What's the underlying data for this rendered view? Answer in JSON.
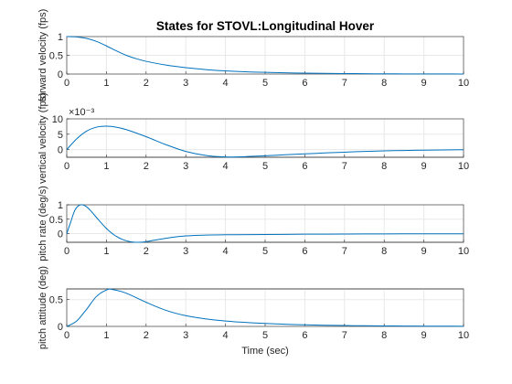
{
  "chart_data": {
    "type": "line",
    "title": "States for STOVL:Longitudinal Hover",
    "xlabel": "Time (sec)",
    "colors": {
      "line": "#0072BD",
      "axes": "#262626",
      "grid": "#e8e8e8"
    },
    "grid": true,
    "subplots": [
      {
        "ylabel": "forward velocity (fps)",
        "exponent_label": "",
        "xlim": [
          0,
          10
        ],
        "ylim": [
          0,
          1
        ],
        "xticks": [
          0,
          1,
          2,
          3,
          4,
          5,
          6,
          7,
          8,
          9,
          10
        ],
        "yticks": [
          0,
          0.5,
          1
        ],
        "ytick_labels": [
          "0",
          "0.5",
          "1"
        ],
        "x": [
          0,
          0.25,
          0.5,
          0.75,
          1,
          1.25,
          1.5,
          1.75,
          2,
          2.5,
          3,
          3.5,
          4,
          4.5,
          5,
          5.5,
          6,
          6.5,
          7,
          7.5,
          8,
          8.5,
          9,
          9.5,
          10
        ],
        "y": [
          1,
          0.99,
          0.95,
          0.87,
          0.75,
          0.62,
          0.5,
          0.41,
          0.34,
          0.24,
          0.17,
          0.12,
          0.085,
          0.06,
          0.045,
          0.033,
          0.025,
          0.018,
          0.013,
          0.009,
          0.006,
          0.004,
          0.003,
          0.002,
          0.001
        ]
      },
      {
        "ylabel": "vertical velocity (fps)",
        "exponent_label": "×10⁻³",
        "xlim": [
          0,
          10
        ],
        "ylim": [
          -2.5,
          10
        ],
        "xticks": [
          0,
          1,
          2,
          3,
          4,
          5,
          6,
          7,
          8,
          9,
          10
        ],
        "yticks": [
          0,
          5,
          10
        ],
        "ytick_labels": [
          "0",
          "5",
          "10"
        ],
        "x": [
          0,
          0.25,
          0.5,
          0.75,
          1,
          1.25,
          1.5,
          2,
          2.5,
          3,
          3.5,
          4,
          4.5,
          5,
          5.5,
          6,
          6.5,
          7,
          7.5,
          8,
          8.5,
          9,
          9.5,
          10
        ],
        "y": [
          0,
          3.5,
          6,
          7.3,
          7.6,
          7.3,
          6.5,
          4.2,
          1.6,
          -0.6,
          -1.9,
          -2.4,
          -2.3,
          -2,
          -1.7,
          -1.4,
          -1.1,
          -0.85,
          -0.6,
          -0.42,
          -0.3,
          -0.2,
          -0.12,
          -0.06
        ]
      },
      {
        "ylabel": "pitch rate (deg/s)",
        "exponent_label": "",
        "xlim": [
          0,
          10
        ],
        "ylim": [
          -0.3,
          1
        ],
        "xticks": [
          0,
          1,
          2,
          3,
          4,
          5,
          6,
          7,
          8,
          9,
          10
        ],
        "yticks": [
          0,
          0.5,
          1
        ],
        "ytick_labels": [
          "0",
          "0.5",
          "1"
        ],
        "x": [
          0,
          0.1,
          0.2,
          0.3,
          0.4,
          0.5,
          0.6,
          0.8,
          1,
          1.2,
          1.4,
          1.6,
          1.8,
          2,
          2.2,
          2.5,
          3,
          3.5,
          4,
          5,
          6,
          7,
          8,
          9,
          10
        ],
        "y": [
          0,
          0.4,
          0.8,
          0.97,
          1,
          0.93,
          0.8,
          0.48,
          0.18,
          -0.05,
          -0.2,
          -0.28,
          -0.3,
          -0.28,
          -0.23,
          -0.16,
          -0.08,
          -0.05,
          -0.04,
          -0.03,
          -0.02,
          -0.015,
          -0.01,
          -0.007,
          -0.005
        ]
      },
      {
        "ylabel": "pitch attitude (deg)",
        "exponent_label": "",
        "xlim": [
          0,
          10
        ],
        "ylim": [
          0,
          0.7
        ],
        "xticks": [
          0,
          1,
          2,
          3,
          4,
          5,
          6,
          7,
          8,
          9,
          10
        ],
        "yticks": [
          0,
          0.5
        ],
        "ytick_labels": [
          "0",
          "0.5"
        ],
        "x": [
          0,
          0.25,
          0.5,
          0.75,
          1,
          1.15,
          1.5,
          2,
          2.5,
          3,
          3.5,
          4,
          4.5,
          5,
          5.5,
          6,
          6.5,
          7,
          7.5,
          8,
          8.5,
          9,
          9.5,
          10
        ],
        "y": [
          0,
          0.1,
          0.32,
          0.56,
          0.68,
          0.69,
          0.62,
          0.45,
          0.3,
          0.2,
          0.14,
          0.1,
          0.075,
          0.055,
          0.04,
          0.03,
          0.022,
          0.016,
          0.012,
          0.009,
          0.007,
          0.005,
          0.004,
          0.003
        ]
      }
    ]
  }
}
